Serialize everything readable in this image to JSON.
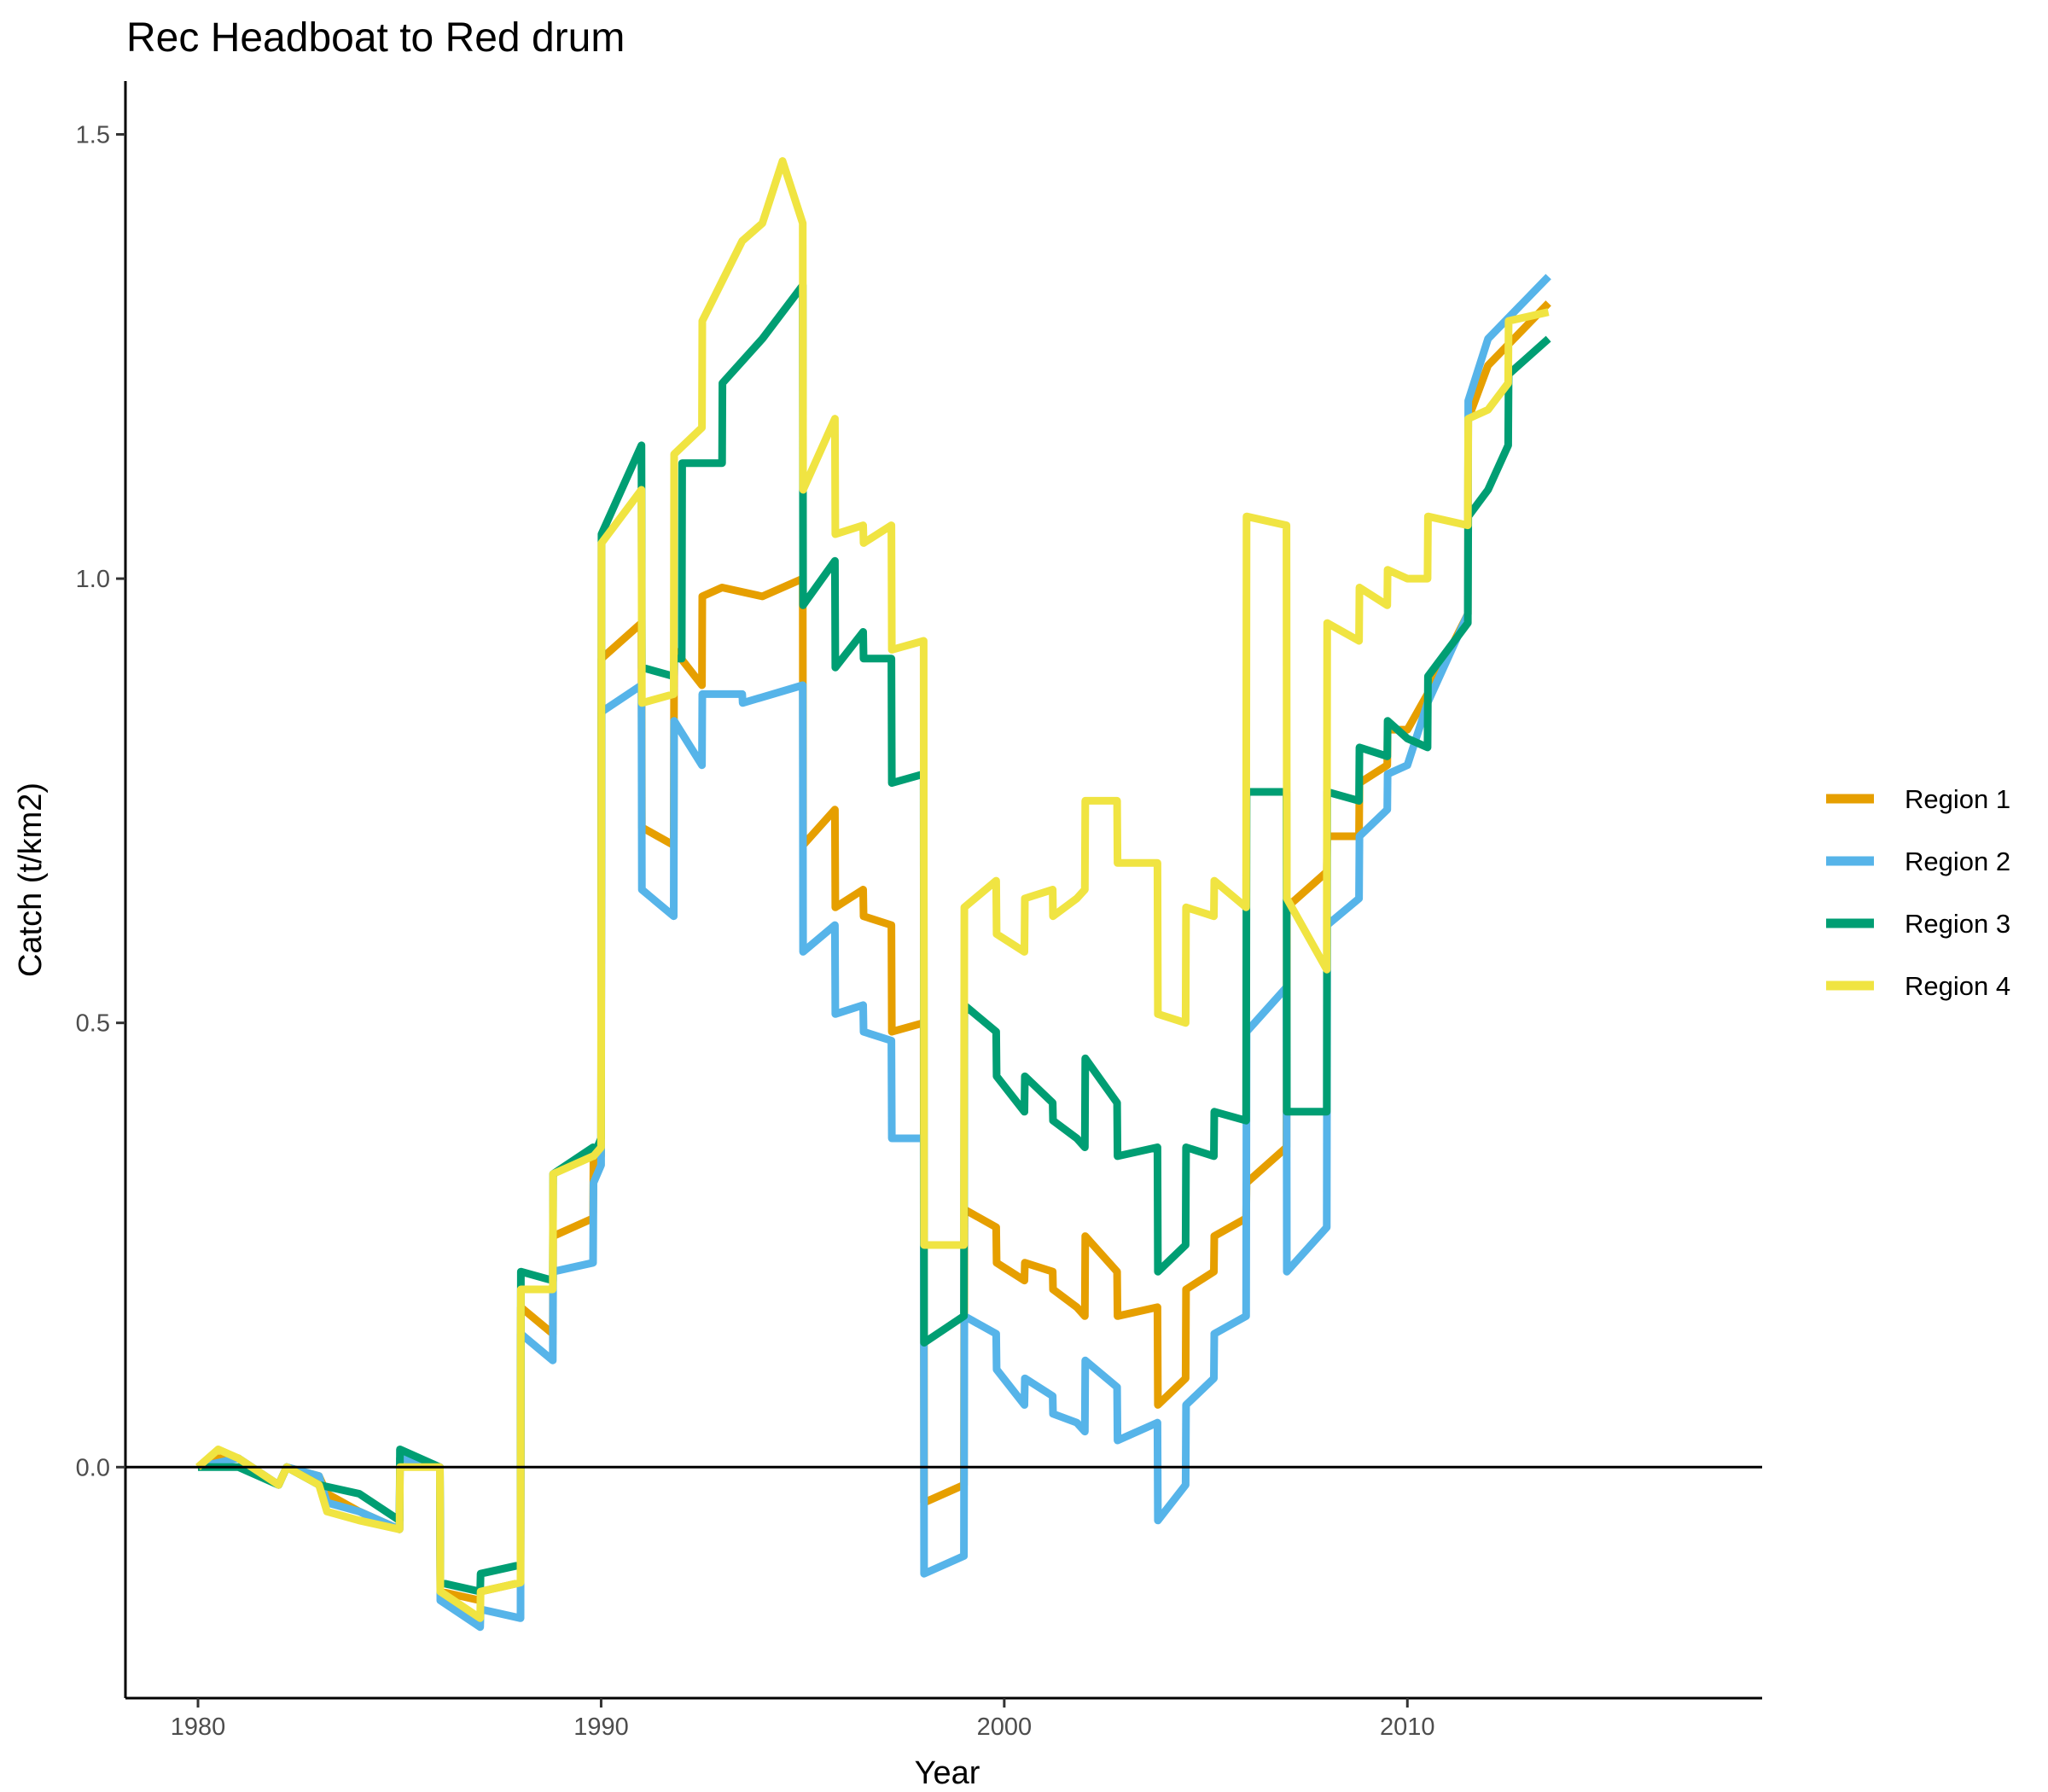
{
  "chart_data": {
    "type": "line",
    "title": "Rec Headboat to Red drum",
    "xlabel": "Year",
    "ylabel": "Catch (t/km2)",
    "xlim": [
      1978.2,
      2018.8
    ],
    "ylim": [
      -0.26,
      1.56
    ],
    "x_ticks": [
      1980,
      1990,
      2000,
      2010
    ],
    "y_ticks": [
      0.0,
      0.5,
      1.0,
      1.5
    ],
    "y_tick_labels": [
      "0.0",
      "0.5",
      "1.0",
      "1.5"
    ],
    "hline": 0,
    "grid": false,
    "legend_position": "right",
    "series": [
      {
        "name": "Region 1",
        "color": "#E69F00",
        "points": [
          [
            1980,
            0
          ],
          [
            1980.5,
            0.01
          ],
          [
            1981,
            0.01
          ],
          [
            1982,
            -0.02
          ],
          [
            1982.2,
            0
          ],
          [
            1983,
            -0.01
          ],
          [
            1983.2,
            -0.03
          ],
          [
            1984,
            -0.05
          ],
          [
            1985,
            -0.07
          ],
          [
            1985.01,
            0.01
          ],
          [
            1986,
            0
          ],
          [
            1986.01,
            -0.14
          ],
          [
            1987,
            -0.15
          ],
          [
            1987.01,
            -0.14
          ],
          [
            1988,
            -0.13
          ],
          [
            1988.01,
            0.18
          ],
          [
            1988.8,
            0.15
          ],
          [
            1988.81,
            0.26
          ],
          [
            1989.8,
            0.28
          ],
          [
            1989.81,
            0.35
          ],
          [
            1990,
            0.35
          ],
          [
            1990.01,
            0.91
          ],
          [
            1991,
            0.95
          ],
          [
            1991.01,
            0.72
          ],
          [
            1991.8,
            0.7
          ],
          [
            1991.81,
            0.92
          ],
          [
            1992.5,
            0.88
          ],
          [
            1992.51,
            0.98
          ],
          [
            1993,
            0.99
          ],
          [
            1994,
            0.98
          ],
          [
            1995,
            1.0
          ],
          [
            1995.01,
            0.7
          ],
          [
            1995.8,
            0.74
          ],
          [
            1995.81,
            0.63
          ],
          [
            1996.5,
            0.65
          ],
          [
            1996.51,
            0.62
          ],
          [
            1997.2,
            0.61
          ],
          [
            1997.21,
            0.49
          ],
          [
            1998,
            0.5
          ],
          [
            1998.01,
            -0.04
          ],
          [
            1999,
            -0.02
          ],
          [
            1999.01,
            0.29
          ],
          [
            1999.8,
            0.27
          ],
          [
            1999.81,
            0.23
          ],
          [
            2000.5,
            0.21
          ],
          [
            2000.51,
            0.23
          ],
          [
            2001.2,
            0.22
          ],
          [
            2001.21,
            0.2
          ],
          [
            2001.8,
            0.18
          ],
          [
            2002,
            0.17
          ],
          [
            2002.01,
            0.26
          ],
          [
            2002.8,
            0.22
          ],
          [
            2002.81,
            0.17
          ],
          [
            2003.8,
            0.18
          ],
          [
            2003.81,
            0.07
          ],
          [
            2004.5,
            0.1
          ],
          [
            2004.51,
            0.2
          ],
          [
            2005.2,
            0.22
          ],
          [
            2005.21,
            0.26
          ],
          [
            2006,
            0.28
          ],
          [
            2006.01,
            0.32
          ],
          [
            2007,
            0.36
          ],
          [
            2007.01,
            0.63
          ],
          [
            2008,
            0.67
          ],
          [
            2008.01,
            0.71
          ],
          [
            2008.8,
            0.71
          ],
          [
            2008.81,
            0.77
          ],
          [
            2009.5,
            0.79
          ],
          [
            2009.51,
            0.83
          ],
          [
            2010,
            0.83
          ],
          [
            2010.5,
            0.87
          ],
          [
            2011.5,
            0.96
          ],
          [
            2011.51,
            1.18
          ],
          [
            2012,
            1.24
          ],
          [
            2013.5,
            1.31
          ]
        ]
      },
      {
        "name": "Region 2",
        "color": "#56B4E9",
        "points": [
          [
            1980,
            0
          ],
          [
            1981,
            0.01
          ],
          [
            1982,
            -0.02
          ],
          [
            1982.2,
            0
          ],
          [
            1983,
            -0.01
          ],
          [
            1983.2,
            -0.04
          ],
          [
            1984,
            -0.05
          ],
          [
            1985,
            -0.07
          ],
          [
            1985.01,
            0.01
          ],
          [
            1986,
            0
          ],
          [
            1986.01,
            -0.15
          ],
          [
            1987,
            -0.18
          ],
          [
            1987.01,
            -0.16
          ],
          [
            1988,
            -0.17
          ],
          [
            1988.01,
            0.15
          ],
          [
            1988.8,
            0.12
          ],
          [
            1988.81,
            0.22
          ],
          [
            1989.8,
            0.23
          ],
          [
            1989.81,
            0.32
          ],
          [
            1990,
            0.34
          ],
          [
            1990.01,
            0.85
          ],
          [
            1991,
            0.88
          ],
          [
            1991.01,
            0.65
          ],
          [
            1991.8,
            0.62
          ],
          [
            1991.81,
            0.84
          ],
          [
            1992.5,
            0.79
          ],
          [
            1992.51,
            0.87
          ],
          [
            1993.5,
            0.87
          ],
          [
            1993.51,
            0.86
          ],
          [
            1995,
            0.88
          ],
          [
            1995.01,
            0.58
          ],
          [
            1995.8,
            0.61
          ],
          [
            1995.81,
            0.51
          ],
          [
            1996.5,
            0.52
          ],
          [
            1996.51,
            0.49
          ],
          [
            1997.2,
            0.48
          ],
          [
            1997.21,
            0.37
          ],
          [
            1998,
            0.37
          ],
          [
            1998.01,
            -0.12
          ],
          [
            1999,
            -0.1
          ],
          [
            1999.01,
            0.17
          ],
          [
            1999.8,
            0.15
          ],
          [
            1999.81,
            0.11
          ],
          [
            2000.5,
            0.07
          ],
          [
            2000.51,
            0.1
          ],
          [
            2001.2,
            0.08
          ],
          [
            2001.21,
            0.06
          ],
          [
            2001.8,
            0.05
          ],
          [
            2002,
            0.04
          ],
          [
            2002.01,
            0.12
          ],
          [
            2002.8,
            0.09
          ],
          [
            2002.81,
            0.03
          ],
          [
            2003.8,
            0.05
          ],
          [
            2003.81,
            -0.06
          ],
          [
            2004.5,
            -0.02
          ],
          [
            2004.51,
            0.07
          ],
          [
            2005.2,
            0.1
          ],
          [
            2005.21,
            0.15
          ],
          [
            2006,
            0.17
          ],
          [
            2006.01,
            0.49
          ],
          [
            2007,
            0.54
          ],
          [
            2007.01,
            0.22
          ],
          [
            2008,
            0.27
          ],
          [
            2008.01,
            0.61
          ],
          [
            2008.8,
            0.64
          ],
          [
            2008.81,
            0.71
          ],
          [
            2009.5,
            0.74
          ],
          [
            2009.51,
            0.78
          ],
          [
            2010,
            0.79
          ],
          [
            2010.5,
            0.86
          ],
          [
            2011.5,
            0.96
          ],
          [
            2011.51,
            1.2
          ],
          [
            2012,
            1.27
          ],
          [
            2013.5,
            1.34
          ]
        ]
      },
      {
        "name": "Region 3",
        "color": "#009E73",
        "points": [
          [
            1980,
            0
          ],
          [
            1981,
            0
          ],
          [
            1982,
            -0.02
          ],
          [
            1982.2,
            0
          ],
          [
            1983,
            -0.02
          ],
          [
            1984,
            -0.03
          ],
          [
            1985,
            -0.06
          ],
          [
            1985.01,
            0.02
          ],
          [
            1986,
            0
          ],
          [
            1986.01,
            -0.13
          ],
          [
            1987,
            -0.14
          ],
          [
            1987.01,
            -0.12
          ],
          [
            1988,
            -0.11
          ],
          [
            1988.01,
            0.22
          ],
          [
            1988.8,
            0.21
          ],
          [
            1988.81,
            0.33
          ],
          [
            1989.8,
            0.36
          ],
          [
            1989.81,
            0.35
          ],
          [
            1990,
            0.37
          ],
          [
            1990.01,
            1.05
          ],
          [
            1991,
            1.15
          ],
          [
            1991.01,
            0.9
          ],
          [
            1991.8,
            0.89
          ],
          [
            1991.81,
            0.91
          ],
          [
            1992,
            0.91
          ],
          [
            1992.01,
            1.13
          ],
          [
            1993,
            1.13
          ],
          [
            1993.01,
            1.22
          ],
          [
            1994,
            1.27
          ],
          [
            1995,
            1.33
          ],
          [
            1995.01,
            0.97
          ],
          [
            1995.8,
            1.02
          ],
          [
            1995.81,
            0.9
          ],
          [
            1996.5,
            0.94
          ],
          [
            1996.51,
            0.91
          ],
          [
            1997.2,
            0.91
          ],
          [
            1997.21,
            0.77
          ],
          [
            1998,
            0.78
          ],
          [
            1998.01,
            0.14
          ],
          [
            1999,
            0.17
          ],
          [
            1999.01,
            0.52
          ],
          [
            1999.8,
            0.49
          ],
          [
            1999.81,
            0.44
          ],
          [
            2000.5,
            0.4
          ],
          [
            2000.51,
            0.44
          ],
          [
            2001.2,
            0.41
          ],
          [
            2001.21,
            0.39
          ],
          [
            2001.8,
            0.37
          ],
          [
            2002,
            0.36
          ],
          [
            2002.01,
            0.46
          ],
          [
            2002.8,
            0.41
          ],
          [
            2002.81,
            0.35
          ],
          [
            2003.8,
            0.36
          ],
          [
            2003.81,
            0.22
          ],
          [
            2004.5,
            0.25
          ],
          [
            2004.51,
            0.36
          ],
          [
            2005.2,
            0.35
          ],
          [
            2005.21,
            0.4
          ],
          [
            2006,
            0.39
          ],
          [
            2006.01,
            0.76
          ],
          [
            2007,
            0.76
          ],
          [
            2007.01,
            0.4
          ],
          [
            2008,
            0.4
          ],
          [
            2008.01,
            0.76
          ],
          [
            2008.8,
            0.75
          ],
          [
            2008.81,
            0.81
          ],
          [
            2009.5,
            0.8
          ],
          [
            2009.51,
            0.84
          ],
          [
            2010,
            0.82
          ],
          [
            2010.5,
            0.81
          ],
          [
            2010.51,
            0.89
          ],
          [
            2011.5,
            0.95
          ],
          [
            2011.51,
            1.07
          ],
          [
            2012,
            1.1
          ],
          [
            2012.5,
            1.15
          ],
          [
            2012.51,
            1.23
          ],
          [
            2013.5,
            1.27
          ]
        ]
      },
      {
        "name": "Region 4",
        "color": "#F0E442",
        "points": [
          [
            1980,
            0
          ],
          [
            1980.5,
            0.02
          ],
          [
            1981,
            0.01
          ],
          [
            1982,
            -0.02
          ],
          [
            1982.2,
            0
          ],
          [
            1983,
            -0.02
          ],
          [
            1983.2,
            -0.05
          ],
          [
            1984,
            -0.06
          ],
          [
            1985,
            -0.07
          ],
          [
            1985.01,
            0
          ],
          [
            1986,
            0
          ],
          [
            1986.01,
            -0.14
          ],
          [
            1987,
            -0.17
          ],
          [
            1987.01,
            -0.14
          ],
          [
            1988,
            -0.13
          ],
          [
            1988.01,
            0.2
          ],
          [
            1988.8,
            0.2
          ],
          [
            1988.81,
            0.33
          ],
          [
            1989.8,
            0.35
          ],
          [
            1989.81,
            0.35
          ],
          [
            1990,
            0.36
          ],
          [
            1990.01,
            1.04
          ],
          [
            1991,
            1.1
          ],
          [
            1991.01,
            0.86
          ],
          [
            1991.8,
            0.87
          ],
          [
            1991.81,
            1.14
          ],
          [
            1992.5,
            1.17
          ],
          [
            1992.51,
            1.29
          ],
          [
            1993.5,
            1.38
          ],
          [
            1994,
            1.4
          ],
          [
            1994.5,
            1.47
          ],
          [
            1995,
            1.4
          ],
          [
            1995.01,
            1.1
          ],
          [
            1995.8,
            1.18
          ],
          [
            1995.81,
            1.05
          ],
          [
            1996.5,
            1.06
          ],
          [
            1996.51,
            1.04
          ],
          [
            1997.2,
            1.06
          ],
          [
            1997.21,
            0.92
          ],
          [
            1998,
            0.93
          ],
          [
            1998.01,
            0.25
          ],
          [
            1999,
            0.25
          ],
          [
            1999.01,
            0.63
          ],
          [
            1999.8,
            0.66
          ],
          [
            1999.81,
            0.6
          ],
          [
            2000.5,
            0.58
          ],
          [
            2000.51,
            0.64
          ],
          [
            2001.2,
            0.65
          ],
          [
            2001.21,
            0.62
          ],
          [
            2001.8,
            0.64
          ],
          [
            2002,
            0.65
          ],
          [
            2002.01,
            0.75
          ],
          [
            2002.8,
            0.75
          ],
          [
            2002.81,
            0.68
          ],
          [
            2003.8,
            0.68
          ],
          [
            2003.81,
            0.51
          ],
          [
            2004.5,
            0.5
          ],
          [
            2004.51,
            0.63
          ],
          [
            2005.2,
            0.62
          ],
          [
            2005.21,
            0.66
          ],
          [
            2006,
            0.63
          ],
          [
            2006.01,
            1.07
          ],
          [
            2007,
            1.06
          ],
          [
            2007.01,
            0.64
          ],
          [
            2008,
            0.56
          ],
          [
            2008.01,
            0.95
          ],
          [
            2008.8,
            0.93
          ],
          [
            2008.81,
            0.99
          ],
          [
            2009.5,
            0.97
          ],
          [
            2009.51,
            1.01
          ],
          [
            2010,
            1.0
          ],
          [
            2010.5,
            1.0
          ],
          [
            2010.51,
            1.07
          ],
          [
            2011.5,
            1.06
          ],
          [
            2011.51,
            1.18
          ],
          [
            2012,
            1.19
          ],
          [
            2012.5,
            1.22
          ],
          [
            2012.51,
            1.29
          ],
          [
            2013.5,
            1.3
          ]
        ]
      }
    ]
  }
}
